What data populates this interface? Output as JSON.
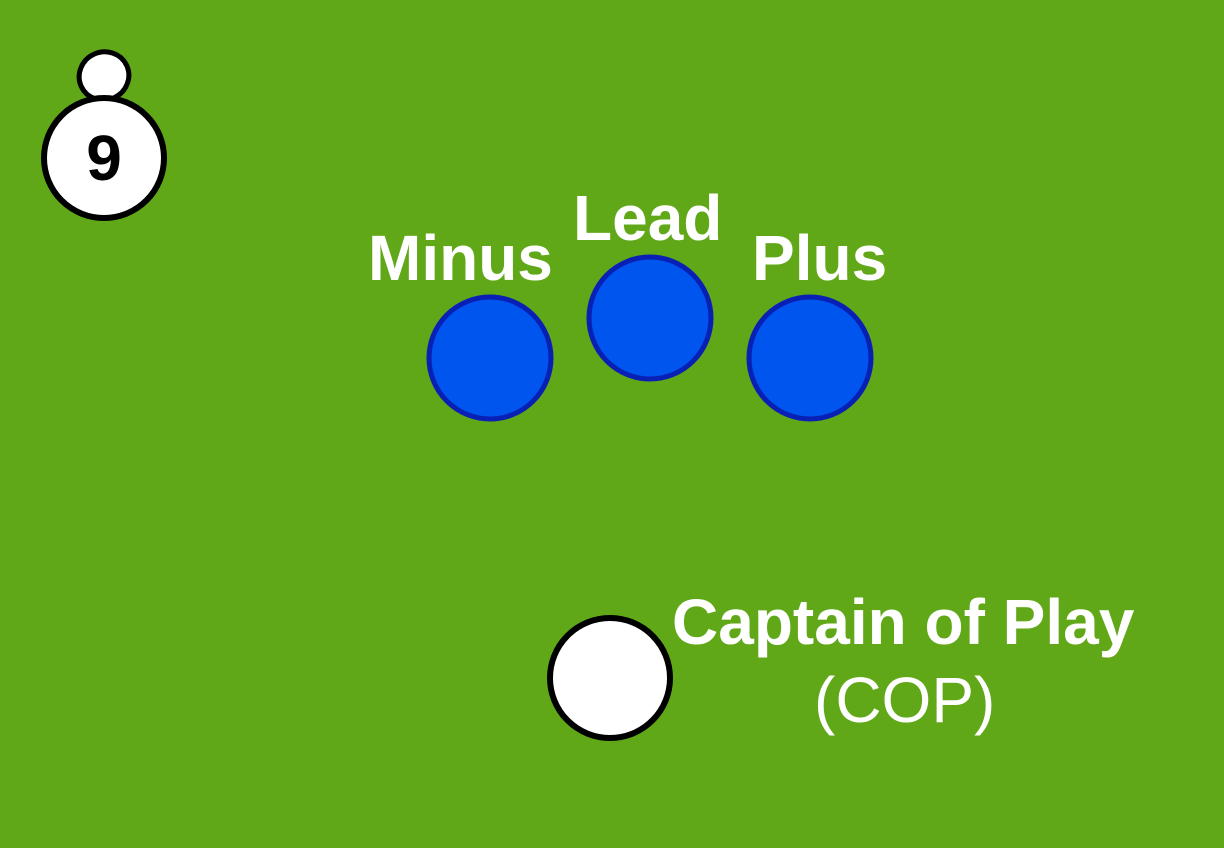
{
  "colors": {
    "field": "#61a819",
    "official_fill": "#0055ee",
    "official_stroke": "#0a1fb4",
    "cop_fill": "#ffffff",
    "cop_stroke": "#000000",
    "label": "#ffffff",
    "badge_fill": "#ffffff",
    "badge_stroke": "#000000"
  },
  "badge": {
    "number": "9",
    "icon": "ball-icon"
  },
  "officials": [
    {
      "label": "Minus"
    },
    {
      "label": "Lead"
    },
    {
      "label": "Plus"
    }
  ],
  "captain": {
    "title": "Captain of Play",
    "abbreviation": "(COP)"
  }
}
